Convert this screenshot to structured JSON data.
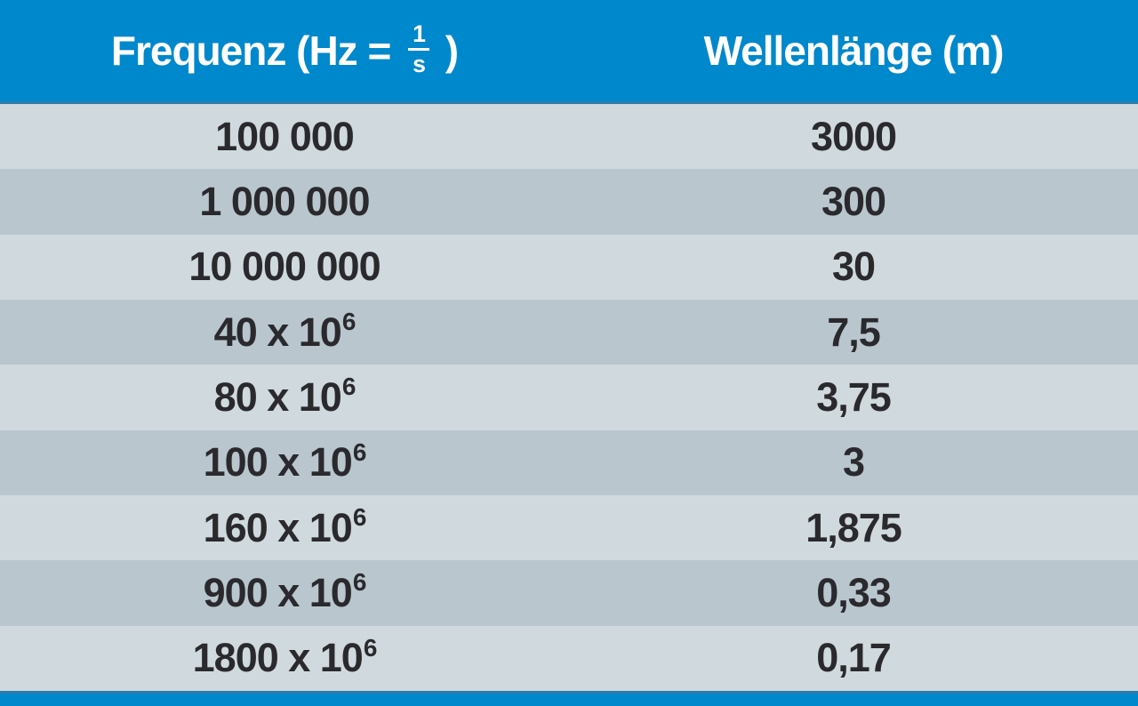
{
  "table": {
    "header": {
      "frequency_prefix": "Frequenz (Hz = ",
      "fraction_numerator": "1",
      "fraction_denominator": "s",
      "frequency_suffix": " )",
      "wavelength_label": "Wellenlänge (m)"
    },
    "rows": [
      {
        "freq_base": "100 000",
        "freq_exp": "",
        "wavelength": "3000"
      },
      {
        "freq_base": "1 000 000",
        "freq_exp": "",
        "wavelength": "300"
      },
      {
        "freq_base": "10 000 000",
        "freq_exp": "",
        "wavelength": "30"
      },
      {
        "freq_base": "40 x 10",
        "freq_exp": "6",
        "wavelength": "7,5"
      },
      {
        "freq_base": "80 x 10",
        "freq_exp": "6",
        "wavelength": "3,75"
      },
      {
        "freq_base": "100 x 10",
        "freq_exp": "6",
        "wavelength": "3"
      },
      {
        "freq_base": "160 x 10",
        "freq_exp": "6",
        "wavelength": "1,875"
      },
      {
        "freq_base": "900 x 10",
        "freq_exp": "6",
        "wavelength": "0,33"
      },
      {
        "freq_base": "1800 x 10",
        "freq_exp": "6",
        "wavelength": "0,17"
      }
    ]
  },
  "colors": {
    "header_blue": "#0088cc",
    "divider_blue": "#2f7cab",
    "row_light": "#d0dade",
    "row_dark": "#b9c6cd",
    "header_text": "#ffffff",
    "cell_text": "#2a2a2e"
  },
  "chart_data": {
    "type": "table",
    "title": "",
    "columns": [
      "Frequenz (Hz = 1/s)",
      "Wellenlänge (m)"
    ],
    "rows": [
      [
        "100 000",
        "3000"
      ],
      [
        "1 000 000",
        "300"
      ],
      [
        "10 000 000",
        "30"
      ],
      [
        "40 x 10^6",
        "7,5"
      ],
      [
        "80 x 10^6",
        "3,75"
      ],
      [
        "100 x 10^6",
        "3"
      ],
      [
        "160 x 10^6",
        "1,875"
      ],
      [
        "900 x 10^6",
        "0,33"
      ],
      [
        "1800 x 10^6",
        "0,17"
      ]
    ]
  }
}
